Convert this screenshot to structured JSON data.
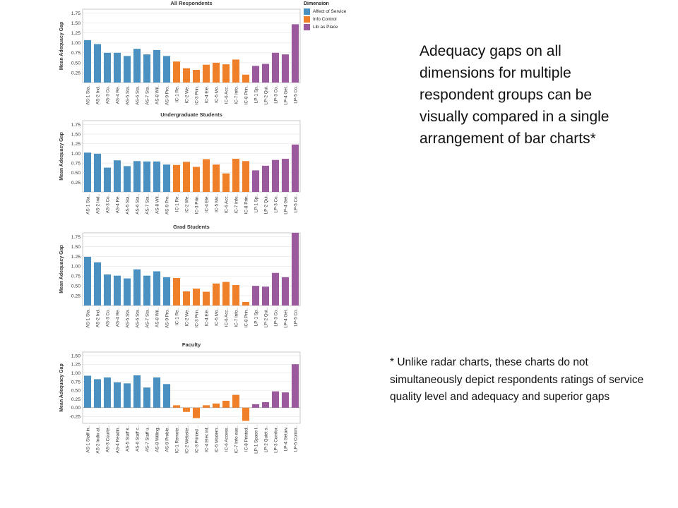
{
  "caption": "Adequacy gaps on all dimensions for multiple respondent groups can be visually compared in a single arrangement of bar charts*",
  "footnote": "* Unlike radar charts, these charts do not simultaneously depict respondents ratings of service quality level and adequacy and superior gaps",
  "legend": {
    "title": "Dimension",
    "items": [
      {
        "label": "Affect of Service",
        "color": "#4a90c0"
      },
      {
        "label": "Info Control",
        "color": "#f07f2a"
      },
      {
        "label": "Lib as Place",
        "color": "#9b5a9e"
      }
    ]
  },
  "chart_data": [
    {
      "type": "bar",
      "title": "All Respondents",
      "ylabel": "Mean Adequacy Gap",
      "ylim": [
        0,
        1.85
      ],
      "yticks": [
        "0.25",
        "0.50",
        "0.75",
        "1.00",
        "1.25",
        "1.50",
        "1.75"
      ],
      "categories": [
        "AS-1 Sta..",
        "AS-2 Ind..",
        "AS-3 Co..",
        "AS-4 Re..",
        "AS-5 Sta..",
        "AS-6 Sta..",
        "AS-7 Sta..",
        "AS-8 Wil..",
        "AS-9 Pro..",
        "IC-1 Re..",
        "IC-2 We..",
        "IC-3 Prin..",
        "IC-4 Ele..",
        "IC-5 Mo..",
        "IC-6 Acc..",
        "IC-7 Info..",
        "IC-8 Prin..",
        "LP-1 Sp..",
        "LP-2 Qui..",
        "LP-3 Co..",
        "LP-4 Get..",
        "LP-5 Co.."
      ],
      "groups": [
        0,
        0,
        0,
        0,
        0,
        0,
        0,
        0,
        0,
        1,
        1,
        1,
        1,
        1,
        1,
        1,
        1,
        2,
        2,
        2,
        2,
        2
      ],
      "values": [
        1.07,
        0.97,
        0.75,
        0.75,
        0.67,
        0.85,
        0.71,
        0.82,
        0.67,
        0.53,
        0.36,
        0.32,
        0.45,
        0.5,
        0.46,
        0.58,
        0.2,
        0.42,
        0.47,
        0.75,
        0.71,
        1.47
      ]
    },
    {
      "type": "bar",
      "title": "Undergraduate Students",
      "ylabel": "Mean Adequacy Gap",
      "ylim": [
        0,
        1.85
      ],
      "yticks": [
        "0.25",
        "0.50",
        "0.75",
        "1.00",
        "1.25",
        "1.50",
        "1.75"
      ],
      "categories": [
        "AS-1 Sta..",
        "AS-2 Ind..",
        "AS-3 Co..",
        "AS-4 Re..",
        "AS-5 Sta..",
        "AS-6 Sta..",
        "AS-7 Sta..",
        "AS-8 Wil..",
        "AS-9 Pro..",
        "IC-1 Re..",
        "IC-2 We..",
        "IC-3 Prin..",
        "IC-4 Ele..",
        "IC-5 Mo..",
        "IC-6 Acc..",
        "IC-7 Info..",
        "IC-8 Prin..",
        "LP-1 Sp..",
        "LP-2 Qui..",
        "LP-3 Co..",
        "LP-4 Get..",
        "LP-5 Co.."
      ],
      "groups": [
        0,
        0,
        0,
        0,
        0,
        0,
        0,
        0,
        0,
        1,
        1,
        1,
        1,
        1,
        1,
        1,
        1,
        2,
        2,
        2,
        2,
        2
      ],
      "values": [
        1.02,
        0.99,
        0.63,
        0.82,
        0.67,
        0.8,
        0.79,
        0.79,
        0.71,
        0.7,
        0.78,
        0.65,
        0.85,
        0.71,
        0.48,
        0.86,
        0.8,
        0.56,
        0.68,
        0.83,
        0.86,
        1.23
      ]
    },
    {
      "type": "bar",
      "title": "Grad Students",
      "ylabel": "Mean Adequacy Gap",
      "ylim": [
        0,
        1.85
      ],
      "yticks": [
        "0.25",
        "0.50",
        "0.75",
        "1.00",
        "1.25",
        "1.50",
        "1.75"
      ],
      "categories": [
        "AS-1 Sta..",
        "AS-2 Ind..",
        "AS-3 Co..",
        "AS-4 Re..",
        "AS-5 Sta..",
        "AS-6 Sta..",
        "AS-7 Sta..",
        "AS-8 Wil..",
        "AS-9 Pro..",
        "IC-1 Re..",
        "IC-2 We..",
        "IC-3 Prin..",
        "IC-4 Ele..",
        "IC-5 Mo..",
        "IC-6 Acc..",
        "IC-7 Info..",
        "IC-8 Prin..",
        "LP-1 Sp..",
        "LP-2 Qui..",
        "LP-3 Co..",
        "LP-4 Get..",
        "LP-5 Co.."
      ],
      "groups": [
        0,
        0,
        0,
        0,
        0,
        0,
        0,
        0,
        0,
        1,
        1,
        1,
        1,
        1,
        1,
        1,
        1,
        2,
        2,
        2,
        2,
        2
      ],
      "values": [
        1.24,
        1.1,
        0.79,
        0.76,
        0.69,
        0.92,
        0.76,
        0.87,
        0.72,
        0.7,
        0.36,
        0.43,
        0.35,
        0.56,
        0.6,
        0.52,
        0.09,
        0.5,
        0.48,
        0.83,
        0.72,
        1.85
      ]
    },
    {
      "type": "bar",
      "title": "Faculty",
      "ylabel": "Mean Adequacy Gap",
      "ylim": [
        -0.45,
        1.6
      ],
      "yticks": [
        "-0.25",
        "0.00",
        "0.25",
        "0.50",
        "0.75",
        "1.00",
        "1.25",
        "1.50"
      ],
      "categories": [
        "AS-1 Staff in..",
        "AS-2 Indiv at..",
        "AS-3 Courte..",
        "AS-4 Readin..",
        "AS-5 Staff k..",
        "AS-6 Staff c..",
        "AS-7 Staff u..",
        "AS-8 Willing..",
        "AS-9 Proble..",
        "IC-1 Remote..",
        "IC-2 Website..",
        "IC-3 Printed ..",
        "IC-4 Elec inf..",
        "IC-5 Modern..",
        "IC-6 Access..",
        "IC-7 Info eas..",
        "IC-8 Printed..",
        "LP-1 Space I..",
        "LP-2 Quiet s..",
        "LP-3 Comfor..",
        "LP-4 Getaw..",
        "LP-5 Comm.."
      ],
      "groups": [
        0,
        0,
        0,
        0,
        0,
        0,
        0,
        0,
        0,
        1,
        1,
        1,
        1,
        1,
        1,
        1,
        1,
        2,
        2,
        2,
        2,
        2
      ],
      "values": [
        0.92,
        0.82,
        0.87,
        0.73,
        0.7,
        0.93,
        0.58,
        0.87,
        0.68,
        0.07,
        -0.12,
        -0.3,
        0.07,
        0.12,
        0.2,
        0.37,
        -0.38,
        0.1,
        0.16,
        0.47,
        0.44,
        1.25
      ]
    }
  ]
}
